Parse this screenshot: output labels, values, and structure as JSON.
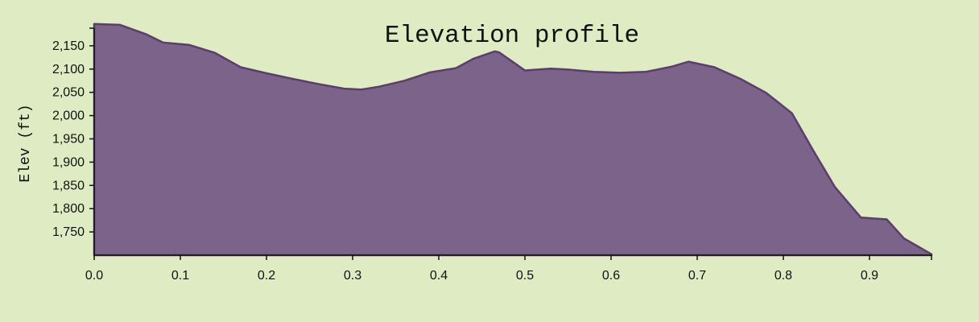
{
  "chart_data": {
    "type": "area",
    "title": "Elevation profile",
    "xlabel": "",
    "ylabel": "Elev (ft)",
    "xlim": [
      0,
      0.972
    ],
    "ylim": [
      1700,
      2200
    ],
    "x_ticks": [
      0.0,
      0.1,
      0.2,
      0.3,
      0.4,
      0.5,
      0.6,
      0.7,
      0.8,
      0.9
    ],
    "x_tick_labels": [
      "0.0",
      "0.1",
      "0.2",
      "0.3",
      "0.4",
      "0.5",
      "0.6",
      "0.7",
      "0.8",
      "0.9"
    ],
    "y_ticks": [
      1750,
      1800,
      1850,
      1900,
      1950,
      2000,
      2050,
      2100,
      2150
    ],
    "y_tick_labels": [
      "1,750",
      "1,800",
      "1,850",
      "1,900",
      "1,950",
      "2,000",
      "2,050",
      "2,100",
      "2,150"
    ],
    "grid": false,
    "colors": {
      "fill": "#7b6389",
      "stroke": "#5b3e6b"
    },
    "series": [
      {
        "x": [
          0.0,
          0.03,
          0.06,
          0.08,
          0.11,
          0.14,
          0.17,
          0.2,
          0.23,
          0.26,
          0.29,
          0.31,
          0.33,
          0.36,
          0.39,
          0.42,
          0.44,
          0.465,
          0.47,
          0.5,
          0.53,
          0.55,
          0.58,
          0.61,
          0.64,
          0.67,
          0.69,
          0.72,
          0.75,
          0.78,
          0.81,
          0.835,
          0.86,
          0.89,
          0.92,
          0.94,
          0.972
        ],
        "y": [
          2197,
          2195,
          2175,
          2157,
          2152,
          2135,
          2104,
          2091,
          2079,
          2068,
          2058,
          2056,
          2062,
          2075,
          2093,
          2102,
          2122,
          2138,
          2136,
          2097,
          2101,
          2099,
          2094,
          2092,
          2094,
          2105,
          2116,
          2104,
          2079,
          2049,
          2005,
          1924,
          1846,
          1781,
          1777,
          1736,
          1702
        ]
      }
    ]
  }
}
